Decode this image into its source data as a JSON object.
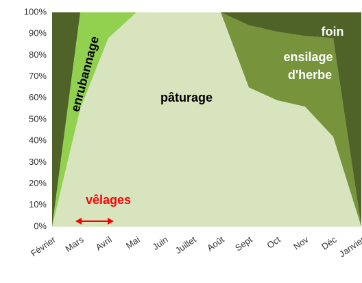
{
  "chart_data": {
    "type": "stacked-area",
    "categories": [
      "Février",
      "Mars",
      "Avril",
      "Mai",
      "Juin",
      "Juillet",
      "Août",
      "Sept",
      "Oct",
      "Nov",
      "Déc",
      "Janvier"
    ],
    "series": [
      {
        "name": "pâturage",
        "color": "#d7e4bd",
        "values": [
          0,
          55,
          88,
          100,
          100,
          100,
          100,
          65,
          59,
          56,
          42,
          0
        ]
      },
      {
        "name": "enrubannage",
        "color": "#92d050",
        "values": [
          0,
          45,
          12,
          0,
          0,
          0,
          0,
          0,
          0,
          0,
          0,
          0
        ]
      },
      {
        "name": "ensilage d'herbe",
        "color": "#77933c",
        "values": [
          0,
          0,
          0,
          0,
          0,
          0,
          0,
          29,
          32,
          33,
          46,
          0
        ]
      },
      {
        "name": "foin",
        "color": "#4f6228",
        "values": [
          100,
          0,
          0,
          0,
          0,
          0,
          0,
          6,
          9,
          11,
          12,
          100
        ]
      }
    ],
    "annotations": [
      {
        "text": "vêlages",
        "color": "#ff0000"
      }
    ],
    "ylim": [
      0,
      100
    ],
    "yticks": [
      {
        "value": 0,
        "label": "0%"
      },
      {
        "value": 10,
        "label": "10%"
      },
      {
        "value": 20,
        "label": "20%"
      },
      {
        "value": 30,
        "label": "30%"
      },
      {
        "value": 40,
        "label": "40%"
      },
      {
        "value": 50,
        "label": "50%"
      },
      {
        "value": 60,
        "label": "60%"
      },
      {
        "value": 70,
        "label": "70%"
      },
      {
        "value": 80,
        "label": "80%"
      },
      {
        "value": 90,
        "label": "90%"
      },
      {
        "value": 100,
        "label": "100%"
      }
    ]
  }
}
